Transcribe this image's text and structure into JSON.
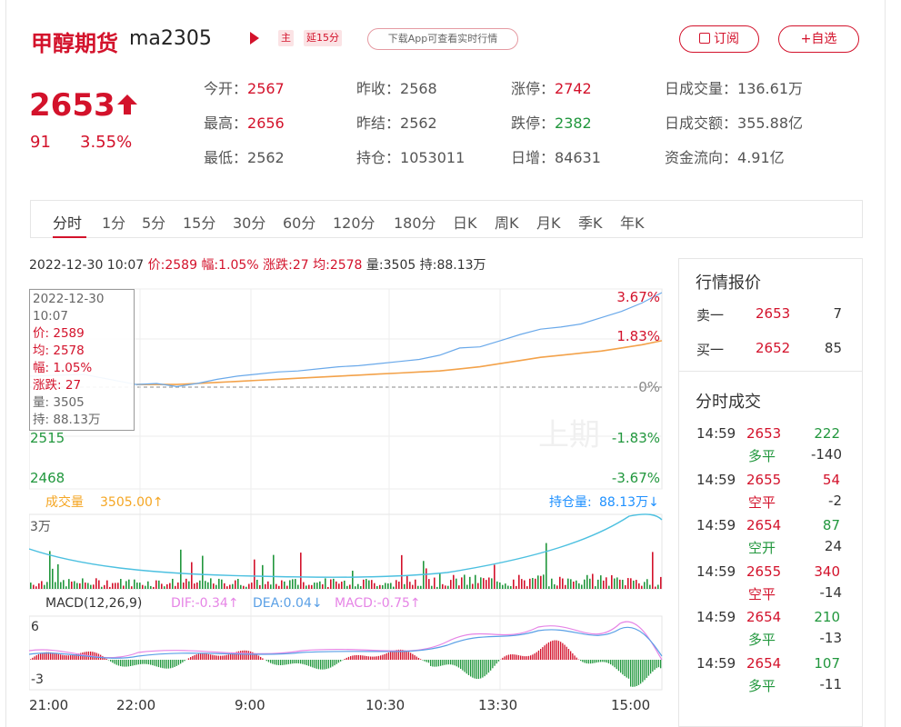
{
  "header": {
    "name": "甲醇期货",
    "code": "ma2305",
    "tag_main": "主",
    "tag_delay": "延15分",
    "app_hint": "下载App可查看实时行情",
    "subscribe_label": "订阅",
    "add_watch_label": "+自选"
  },
  "quote": {
    "price": "2653",
    "change": "91",
    "change_pct": "3.55%"
  },
  "stats": [
    {
      "label": "今开：",
      "value": "2567",
      "color": "red"
    },
    {
      "label": "昨收：",
      "value": "2568",
      "color": "none"
    },
    {
      "label": "涨停：",
      "value": "2742",
      "color": "red"
    },
    {
      "label": "日成交量：",
      "value": "136.61万",
      "color": "none"
    },
    {
      "label": "最高：",
      "value": "2656",
      "color": "red"
    },
    {
      "label": "昨结：",
      "value": "2562",
      "color": "none"
    },
    {
      "label": "跌停：",
      "value": "2382",
      "color": "green"
    },
    {
      "label": "日成交额：",
      "value": "355.88亿",
      "color": "none"
    },
    {
      "label": "最低：",
      "value": "2562",
      "color": "none"
    },
    {
      "label": "持仓：",
      "value": "1053011",
      "color": "none"
    },
    {
      "label": "日增：",
      "value": "84631",
      "color": "none"
    },
    {
      "label": "资金流向：",
      "value": "4.91亿",
      "color": "none"
    }
  ],
  "tabs": [
    "分时",
    "1分",
    "5分",
    "15分",
    "30分",
    "60分",
    "120分",
    "180分",
    "日K",
    "周K",
    "月K",
    "季K",
    "年K"
  ],
  "infobar": {
    "datetime": "2022-12-30 10:07",
    "price_label": "价:",
    "price": "2589",
    "amp_label": "幅:",
    "amp": "1.05%",
    "chg_label": "涨跌:",
    "chg": "27",
    "avg_label": "均:",
    "avg": "2578",
    "vol_label": "量:",
    "vol": "3505",
    "oi_label": "持:",
    "oi": "88.13万"
  },
  "tooltip": {
    "date": "2022-12-30",
    "time": "10:07",
    "price_label": "价:",
    "price": "2589",
    "avg_label": "均:",
    "avg": "2578",
    "amp_label": "幅:",
    "amp": "1.05%",
    "chg_label": "涨跌:",
    "chg": "27",
    "vol_label": "量:",
    "vol": "3505",
    "oi_label": "持:",
    "oi": "88.13万"
  },
  "chart_data": {
    "type": "line",
    "y_left_ticks": [
      "2515",
      "2468"
    ],
    "y_right_ticks": [
      "3.67%",
      "1.83%",
      "0%",
      "-1.83%",
      "-3.67%"
    ],
    "x_ticks": [
      "21:00",
      "22:00",
      "9:00",
      "10:30",
      "13:30",
      "15:00"
    ],
    "ylim": [
      2468,
      2656
    ],
    "price_series": [
      2568,
      2569,
      2566,
      2569,
      2573,
      2576,
      2578,
      2580,
      2581,
      2583,
      2585,
      2586,
      2588,
      2590,
      2592,
      2596,
      2603,
      2604,
      2610,
      2616,
      2621,
      2623,
      2626,
      2632,
      2638,
      2646,
      2656
    ],
    "avg_series": [
      2568,
      2568,
      2568,
      2569,
      2570,
      2571,
      2572,
      2573,
      2574,
      2575,
      2576,
      2577,
      2578,
      2579,
      2580,
      2581,
      2583,
      2585,
      2588,
      2591,
      2594,
      2596,
      2598,
      2600,
      2603,
      2606,
      2610
    ],
    "watermark": "上期",
    "volume": {
      "label": "成交量",
      "value": "3505.00↑",
      "oi_label": "持仓量:",
      "oi_value": "88.13万↓",
      "y_top_label": "3万"
    },
    "macd": {
      "label": "MACD(12,26,9)",
      "dif": "DIF:-0.34↑",
      "dea": "DEA:0.04↓",
      "macd": "MACD:-0.75↑",
      "y_top": "6",
      "y_bottom": "-3"
    }
  },
  "orderbook": {
    "title": "行情报价",
    "rows": [
      {
        "side": "卖一",
        "price": "2653",
        "qty": "7"
      },
      {
        "side": "买一",
        "price": "2652",
        "qty": "85"
      }
    ]
  },
  "trades": {
    "title": "分时成交",
    "rows": [
      {
        "time": "14:59",
        "price": "2653",
        "price_color": "red",
        "qty": "222",
        "qty_color": "green",
        "type": "多平",
        "type_color": "green",
        "delta": "-140"
      },
      {
        "time": "14:59",
        "price": "2655",
        "price_color": "red",
        "qty": "54",
        "qty_color": "red",
        "type": "空平",
        "type_color": "red",
        "delta": "-2"
      },
      {
        "time": "14:59",
        "price": "2654",
        "price_color": "red",
        "qty": "87",
        "qty_color": "green",
        "type": "空开",
        "type_color": "green",
        "delta": "24"
      },
      {
        "time": "14:59",
        "price": "2655",
        "price_color": "red",
        "qty": "340",
        "qty_color": "red",
        "type": "空平",
        "type_color": "red",
        "delta": "-14"
      },
      {
        "time": "14:59",
        "price": "2654",
        "price_color": "red",
        "qty": "210",
        "qty_color": "green",
        "type": "多平",
        "type_color": "green",
        "delta": "-13"
      },
      {
        "time": "14:59",
        "price": "2654",
        "price_color": "red",
        "qty": "107",
        "qty_color": "green",
        "type": "多平",
        "type_color": "green",
        "delta": "-11"
      }
    ]
  },
  "colors": {
    "red": "#d3122b",
    "green": "#21973d",
    "price_line": "#6aa9ea",
    "avg_line": "#f3a24a",
    "vol_label": "#f5a623",
    "oi_label": "#1e90ff",
    "macd_pink": "#e685e6",
    "macd_blue": "#5aa0e6"
  }
}
